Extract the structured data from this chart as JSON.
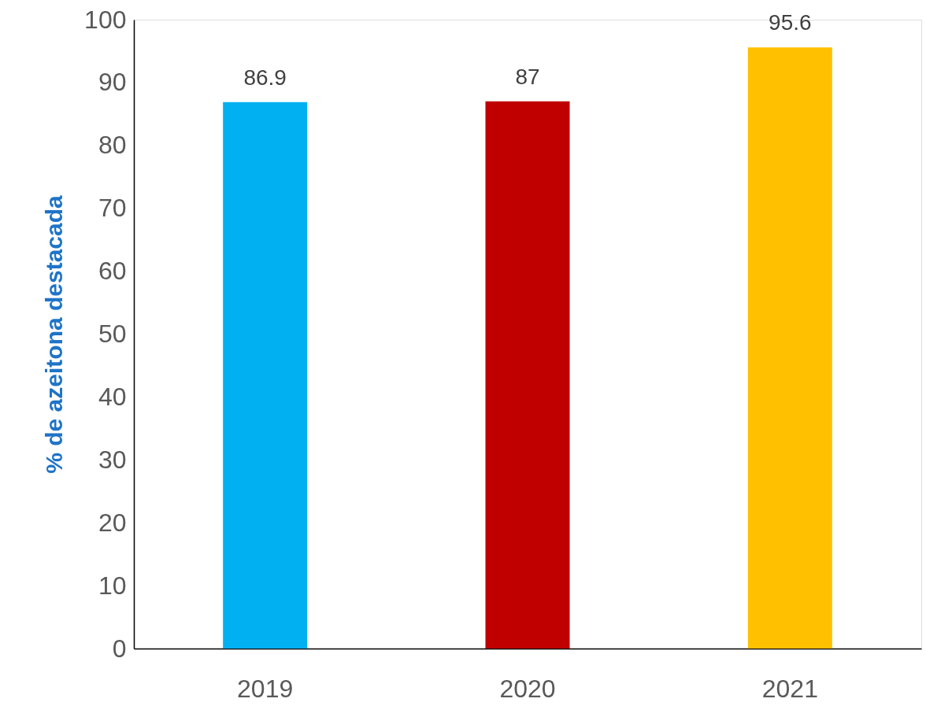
{
  "chart_data": {
    "type": "bar",
    "ylabel": "% de azeitona destacada",
    "categories": [
      "2019",
      "2020",
      "2021"
    ],
    "values": [
      86.9,
      87,
      95.6
    ],
    "colors": [
      "#00b0f0",
      "#c00000",
      "#ffc000"
    ],
    "ylim": [
      0,
      100
    ],
    "yticks": [
      0,
      10,
      20,
      30,
      40,
      50,
      60,
      70,
      80,
      90,
      100
    ],
    "data_labels": true,
    "grid": false
  }
}
